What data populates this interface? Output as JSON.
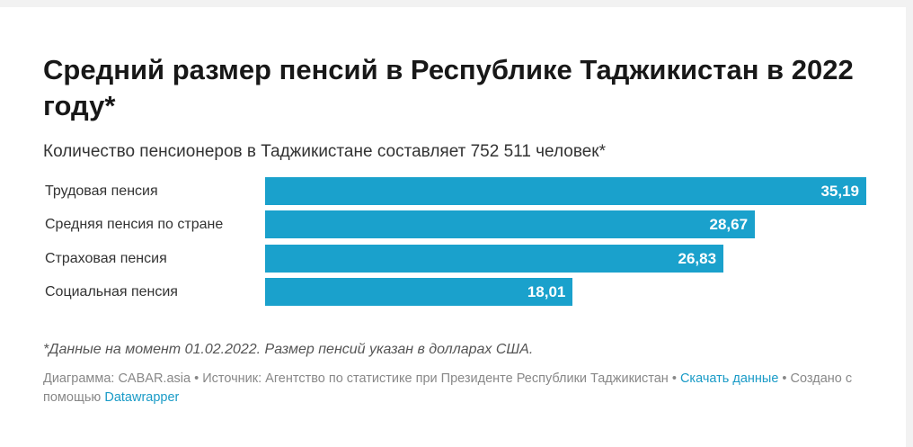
{
  "chart_data": {
    "type": "bar",
    "orientation": "horizontal",
    "title": "Средний размер пенсий в Республике Таджикистан в 2022 году*",
    "subtitle": "Количество пенсионеров в Таджикистане составляет 752 511 человек*",
    "categories": [
      "Трудовая пенсия",
      "Средняя пенсия по стране",
      "Страховая пенсия",
      "Социальная пенсия"
    ],
    "values": [
      35.19,
      28.67,
      26.83,
      18.01
    ],
    "value_labels": [
      "35,19",
      "28,67",
      "26,83",
      "18,01"
    ],
    "xlim": [
      0,
      35.19
    ],
    "bar_color": "#1aa1cc",
    "xlabel": "",
    "ylabel": ""
  },
  "notes": "*Данные на момент 01.02.2022. Размер пенсий указан в долларах США.",
  "footer": {
    "chart_by": "Диаграмма: CABAR.asia",
    "sep": " • ",
    "source": "Источник: Агентство по статистике при Президенте Республики Таджикистан",
    "download": "Скачать данные",
    "created": "Создано с помощью",
    "datawrapper": "Datawrapper"
  }
}
